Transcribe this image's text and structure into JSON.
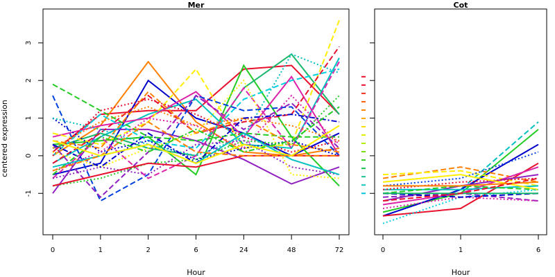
{
  "chart_data": {
    "ylabel": "centered expression",
    "y_ticks": [
      -1,
      0,
      1,
      2,
      3
    ],
    "ylim": [
      -2.1,
      3.9
    ],
    "panels": [
      {
        "type": "line",
        "title": "Mer",
        "xlabel": "Hour",
        "x_ticks": [
          "0",
          "1",
          "2",
          "6",
          "24",
          "48",
          "72"
        ],
        "series": [
          {
            "color": "#e8102c",
            "dash": "solid",
            "values": [
              0.1,
              1.1,
              1.2,
              1.2,
              2.3,
              2.4,
              1.1
            ]
          },
          {
            "color": "#ff8000",
            "dash": "solid",
            "values": [
              0.0,
              0.8,
              2.5,
              0.9,
              0.1,
              0.0,
              0.2
            ]
          },
          {
            "color": "#0000cc",
            "dash": "solid",
            "values": [
              -0.5,
              -0.2,
              2.0,
              1.0,
              0.6,
              0.0,
              0.6
            ]
          },
          {
            "color": "#9020c0",
            "dash": "solid",
            "values": [
              -1.0,
              0.7,
              0.7,
              0.4,
              -0.1,
              -0.75,
              -0.3
            ]
          },
          {
            "color": "#22cc22",
            "dash": "solid",
            "values": [
              0.3,
              0.4,
              0.5,
              -0.5,
              2.4,
              0.5,
              -0.8
            ]
          },
          {
            "color": "#00c0c0",
            "dash": "solid",
            "values": [
              -0.2,
              0.5,
              1.1,
              1.5,
              0.3,
              0.2,
              2.6
            ]
          },
          {
            "color": "#dd22aa",
            "dash": "solid",
            "values": [
              0.5,
              0.8,
              1.0,
              1.7,
              0.5,
              2.1,
              0.0
            ]
          },
          {
            "color": "#18b86a",
            "dash": "solid",
            "values": [
              0.2,
              0.6,
              0.2,
              0.0,
              1.8,
              2.7,
              1.1
            ]
          },
          {
            "color": "#ffee00",
            "dash": "dashed",
            "values": [
              0.6,
              0.3,
              0.9,
              2.3,
              0.2,
              0.3,
              3.6
            ]
          },
          {
            "color": "#e8102c",
            "dash": "dashed",
            "values": [
              -0.2,
              0.6,
              1.6,
              0.6,
              0.9,
              1.1,
              2.9
            ]
          },
          {
            "color": "#0040e0",
            "dash": "dashed",
            "values": [
              1.6,
              -1.2,
              -0.5,
              1.6,
              1.2,
              1.3,
              0.0
            ]
          },
          {
            "color": "#22cc22",
            "dash": "dashed",
            "values": [
              1.9,
              1.2,
              0.5,
              0.4,
              0.6,
              0.5,
              0.5
            ]
          },
          {
            "color": "#9020c0",
            "dash": "dashed",
            "values": [
              0.3,
              -1.1,
              0.1,
              1.6,
              0.7,
              1.4,
              0.2
            ]
          },
          {
            "color": "#00d0e0",
            "dash": "dashed",
            "values": [
              0.0,
              1.1,
              0.4,
              0.2,
              1.5,
              2.0,
              2.3
            ]
          },
          {
            "color": "#dd22aa",
            "dash": "dashed",
            "values": [
              -0.6,
              0.5,
              -0.6,
              0.0,
              1.8,
              0.2,
              2.5
            ]
          },
          {
            "color": "#ff8000",
            "dash": "dashed",
            "values": [
              0.4,
              0.2,
              1.7,
              0.6,
              1.0,
              0.3,
              0.1
            ]
          },
          {
            "color": "#e8102c",
            "dash": "dotted",
            "values": [
              0.0,
              1.2,
              1.5,
              1.1,
              0.5,
              0.1,
              0.4
            ]
          },
          {
            "color": "#ff8000",
            "dash": "dotted",
            "values": [
              0.2,
              0.9,
              1.3,
              0.8,
              1.0,
              0.8,
              0.4
            ]
          },
          {
            "color": "#0000cc",
            "dash": "dotted",
            "values": [
              1.0,
              0.1,
              0.4,
              -0.1,
              0.2,
              0.4,
              0.0
            ]
          },
          {
            "color": "#22cc22",
            "dash": "dotted",
            "values": [
              -0.8,
              -0.6,
              -0.2,
              -0.1,
              0.4,
              0.3,
              1.6
            ]
          },
          {
            "color": "#00c0c0",
            "dash": "dotted",
            "values": [
              1.0,
              0.7,
              0.3,
              0.0,
              0.5,
              2.7,
              2.2
            ]
          },
          {
            "color": "#9020c0",
            "dash": "dotted",
            "values": [
              -0.6,
              -0.3,
              -0.5,
              0.3,
              0.4,
              -0.3,
              -0.5
            ]
          },
          {
            "color": "#ffee00",
            "dash": "dotted",
            "values": [
              0.1,
              -0.3,
              0.2,
              0.6,
              2.0,
              -0.5,
              -0.6
            ]
          },
          {
            "color": "#dd22aa",
            "dash": "dotted",
            "values": [
              -0.4,
              0.1,
              1.0,
              0.8,
              0.2,
              1.6,
              0.3
            ]
          },
          {
            "color": "#0000cc",
            "dash": "dashdot",
            "values": [
              0.3,
              -0.3,
              0.6,
              -0.2,
              1.0,
              1.1,
              0.9
            ]
          },
          {
            "color": "#22cc22",
            "dash": "dashdot",
            "values": [
              -0.5,
              0.5,
              0.1,
              0.7,
              0.1,
              0.4,
              1.3
            ]
          },
          {
            "color": "#e8102c",
            "dash": "solid",
            "values": [
              -0.8,
              -0.5,
              -0.2,
              -0.3,
              0.0,
              0.0,
              0.0
            ]
          },
          {
            "color": "#00c0c0",
            "dash": "solid",
            "values": [
              -0.3,
              0.0,
              0.3,
              -0.2,
              0.6,
              -0.1,
              -0.5
            ]
          },
          {
            "color": "#ff8000",
            "dash": "dashed",
            "values": [
              -0.4,
              0.0,
              0.9,
              0.1,
              0.0,
              0.0,
              0.0
            ]
          },
          {
            "color": "#ffee00",
            "dash": "solid",
            "values": [
              0.4,
              0.0,
              0.3,
              -0.2,
              0.3,
              0.0,
              0.8
            ]
          }
        ]
      },
      {
        "type": "line",
        "title": "Cot",
        "xlabel": "Hour",
        "x_ticks": [
          "0",
          "1",
          "6"
        ],
        "series": [
          {
            "color": "#00c0c0",
            "dash": "dashed",
            "values": [
              -1.6,
              -0.9,
              0.9
            ]
          },
          {
            "color": "#22cc22",
            "dash": "solid",
            "values": [
              -1.5,
              -1.0,
              0.7
            ]
          },
          {
            "color": "#0000cc",
            "dash": "solid",
            "values": [
              -1.6,
              -0.9,
              0.3
            ]
          },
          {
            "color": "#e8102c",
            "dash": "solid",
            "values": [
              -1.6,
              -1.4,
              -0.2
            ]
          },
          {
            "color": "#ff8000",
            "dash": "dashed",
            "values": [
              -0.6,
              -0.3,
              -0.7
            ]
          },
          {
            "color": "#ffee00",
            "dash": "dashed",
            "values": [
              -0.5,
              -0.4,
              -0.8
            ]
          },
          {
            "color": "#dd22aa",
            "dash": "solid",
            "values": [
              -1.3,
              -1.0,
              -0.3
            ]
          },
          {
            "color": "#9020c0",
            "dash": "solid",
            "values": [
              -1.2,
              -0.8,
              -0.5
            ]
          },
          {
            "color": "#0040e0",
            "dash": "dotted",
            "values": [
              -0.8,
              -0.6,
              0.1
            ]
          },
          {
            "color": "#00c0c0",
            "dash": "solid",
            "values": [
              -0.9,
              -0.9,
              -0.8
            ]
          },
          {
            "color": "#22cc22",
            "dash": "dashed",
            "values": [
              -1.0,
              -0.8,
              -0.9
            ]
          },
          {
            "color": "#e8102c",
            "dash": "dotted",
            "values": [
              -0.9,
              -0.7,
              -0.6
            ]
          },
          {
            "color": "#ffee00",
            "dash": "solid",
            "values": [
              -0.7,
              -0.5,
              -0.9
            ]
          },
          {
            "color": "#9020c0",
            "dash": "dashed",
            "values": [
              -1.1,
              -1.0,
              -1.2
            ]
          },
          {
            "color": "#00d0e0",
            "dash": "dotted",
            "values": [
              -1.8,
              -1.1,
              -0.9
            ]
          },
          {
            "color": "#dd22aa",
            "dash": "dotted",
            "values": [
              -1.4,
              -1.1,
              -1.2
            ]
          },
          {
            "color": "#0000cc",
            "dash": "dashed",
            "values": [
              -1.0,
              -1.1,
              -1.0
            ]
          },
          {
            "color": "#ff8000",
            "dash": "solid",
            "values": [
              -0.8,
              -0.8,
              -0.7
            ]
          },
          {
            "color": "#18b86a",
            "dash": "solid",
            "values": [
              -1.0,
              -1.0,
              -1.0
            ]
          },
          {
            "color": "#e8102c",
            "dash": "dashed",
            "values": [
              -1.2,
              -1.0,
              -0.6
            ]
          }
        ],
        "margin_marks": [
          "#e8102c",
          "#e8102c",
          "#ee3018",
          "#ff6000",
          "#ff8000",
          "#ffa800",
          "#ffdd00",
          "#e0ee00",
          "#b0ee00",
          "#70dd00",
          "#30cc20",
          "#18c050",
          "#18c090",
          "#10c8c0",
          "#00c0e0"
        ]
      }
    ]
  }
}
